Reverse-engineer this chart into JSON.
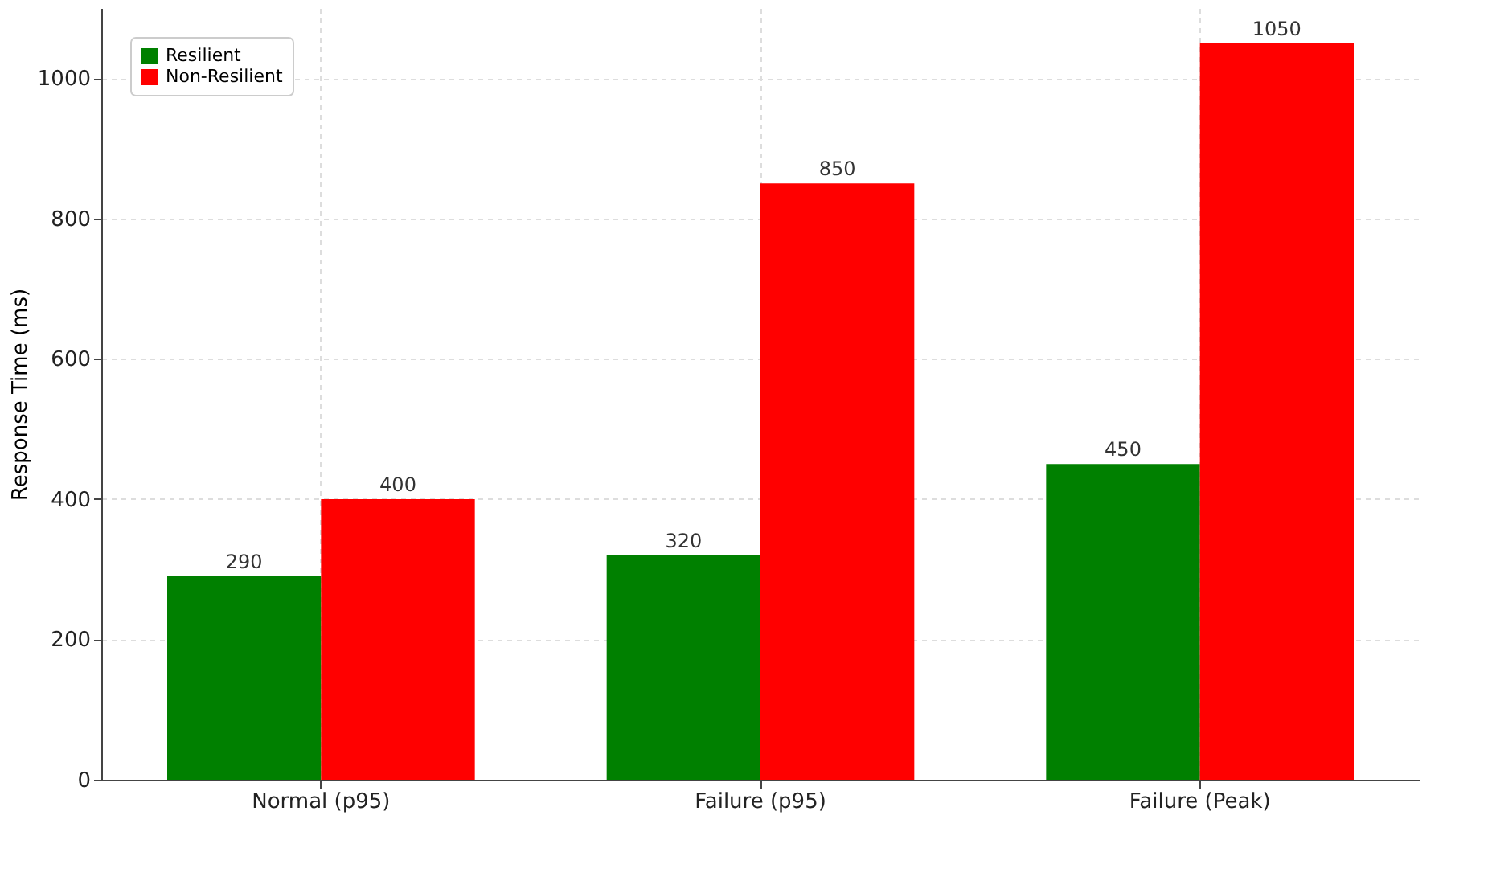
{
  "chart_data": {
    "type": "bar",
    "ylabel": "Response Time (ms)",
    "categories": [
      "Normal (p95)",
      "Failure (p95)",
      "Failure (Peak)"
    ],
    "series": [
      {
        "name": "Resilient",
        "color": "#008000",
        "values": [
          290,
          320,
          450
        ]
      },
      {
        "name": "Non-Resilient",
        "color": "#ff0000",
        "values": [
          400,
          850,
          1050
        ]
      }
    ],
    "ylim": [
      0,
      1100
    ],
    "yticks": [
      0,
      200,
      400,
      600,
      800,
      1000
    ],
    "grid": true,
    "legend": "top left",
    "data_labels": true
  }
}
